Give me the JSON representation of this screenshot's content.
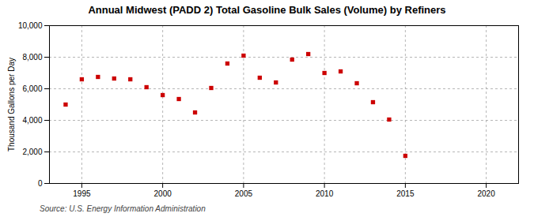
{
  "chart_data": {
    "type": "scatter",
    "title": "Annual Midwest (PADD 2) Total Gasoline Bulk Sales (Volume) by Refiners",
    "ylabel": "Thousand Gallons per Day",
    "source": "Source: U.S. Energy Information Administration",
    "x": [
      1994,
      1995,
      1996,
      1997,
      1998,
      1999,
      2000,
      2001,
      2002,
      2003,
      2004,
      2005,
      2006,
      2007,
      2008,
      2009,
      2010,
      2011,
      2012,
      2013,
      2014,
      2015
    ],
    "values": [
      5000,
      6600,
      6750,
      6650,
      6600,
      6100,
      5600,
      5350,
      4500,
      6050,
      7600,
      8100,
      6700,
      6400,
      7850,
      8200,
      7000,
      7100,
      6350,
      5150,
      4050,
      1750
    ],
    "color": "#cc0000",
    "marker": "square",
    "xlim": [
      1993,
      2022
    ],
    "xticks": [
      1995,
      2000,
      2005,
      2010,
      2015,
      2020
    ],
    "ylim": [
      0,
      10000
    ],
    "yticks": [
      0,
      {
        "value": 2000,
        "label": "2,000"
      },
      {
        "value": 4000,
        "label": "4,000"
      },
      {
        "value": 6000,
        "label": "6,000"
      },
      {
        "value": 8000,
        "label": "8,000"
      },
      {
        "value": 10000,
        "label": "10,000"
      }
    ],
    "grid": true
  }
}
